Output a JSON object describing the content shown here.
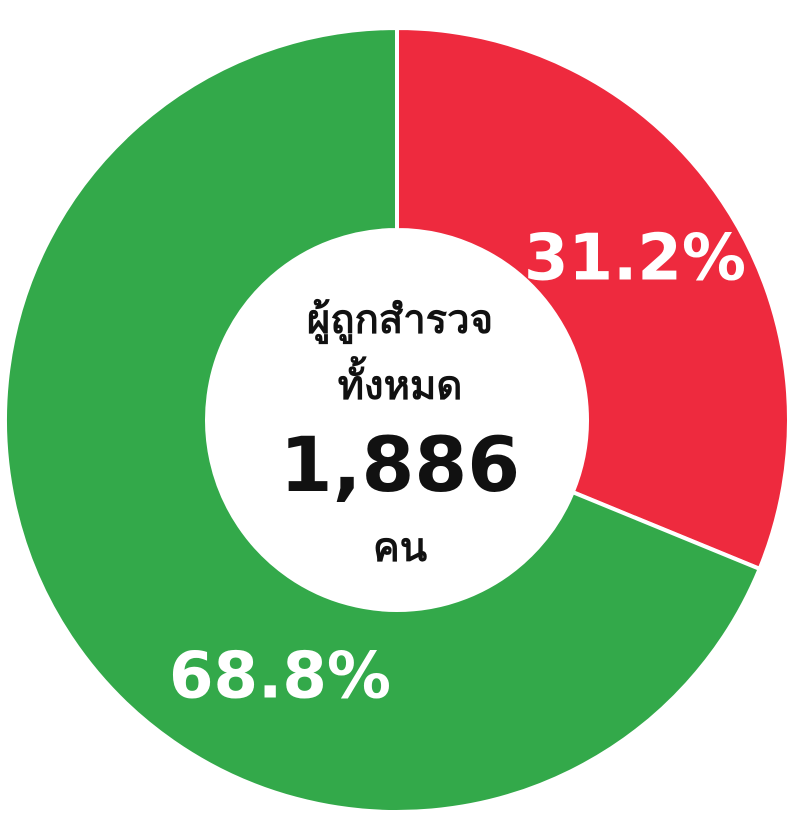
{
  "chart_data": {
    "type": "donut",
    "values": [
      31.2,
      68.8
    ],
    "value_labels": [
      "31.2%",
      "68.8%"
    ],
    "colors": [
      "#ee2a3e",
      "#33a94a"
    ],
    "center_text": [
      "ผู้ถูกสำรวจ",
      "ทั้งหมด",
      "1,886",
      "คน"
    ]
  }
}
